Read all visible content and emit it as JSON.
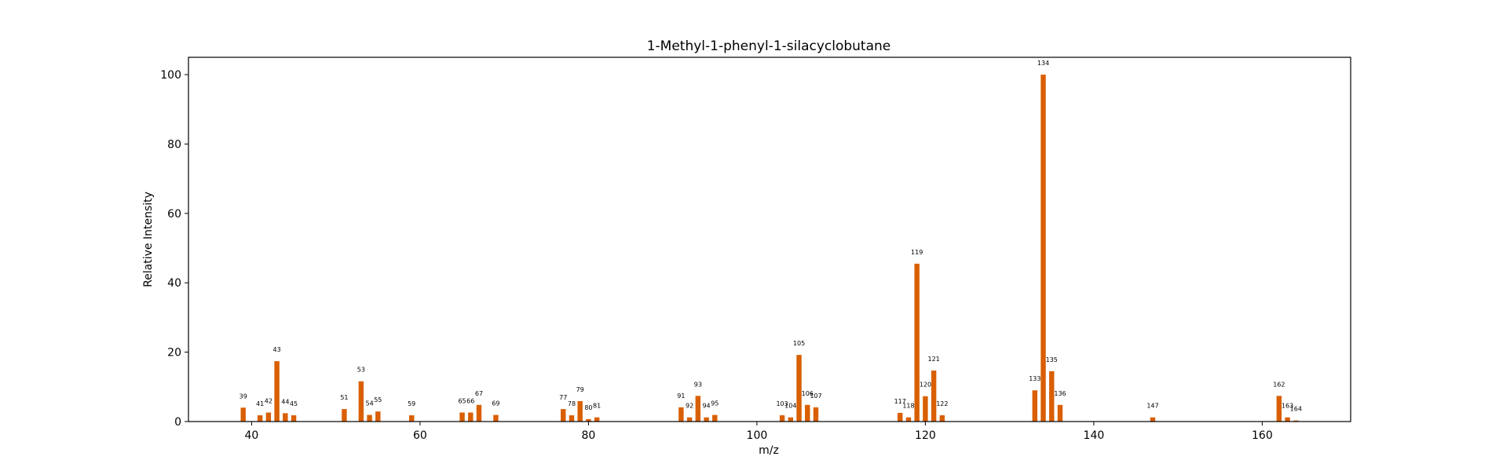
{
  "chart_data": {
    "type": "bar",
    "title": "1-Methyl-1-phenyl-1-silacyclobutane",
    "xlabel": "m/z",
    "ylabel": "Relative Intensity",
    "xlim": [
      32.5,
      170.5
    ],
    "ylim": [
      0,
      105
    ],
    "xticks": [
      40,
      60,
      80,
      100,
      120,
      140,
      160
    ],
    "yticks": [
      0,
      20,
      40,
      60,
      80,
      100
    ],
    "grid": false,
    "bar_color": "#d95f02",
    "bar_width": 0.6,
    "series": [
      {
        "x": [
          39,
          41,
          42,
          43,
          44,
          45,
          51,
          53,
          54,
          55,
          59,
          65,
          66,
          67,
          69,
          77,
          78,
          79,
          80,
          81,
          91,
          92,
          93,
          94,
          95,
          103,
          104,
          105,
          106,
          107,
          117,
          118,
          119,
          120,
          121,
          122,
          133,
          134,
          135,
          136,
          147,
          162,
          163,
          164
        ],
        "values": [
          4.0,
          1.8,
          2.6,
          17.4,
          2.4,
          1.8,
          3.6,
          11.6,
          1.9,
          2.9,
          1.8,
          2.6,
          2.6,
          4.8,
          1.9,
          3.6,
          1.8,
          5.9,
          0.7,
          1.2,
          4.1,
          1.2,
          7.4,
          1.2,
          1.9,
          1.8,
          1.2,
          19.2,
          4.8,
          4.1,
          2.5,
          1.2,
          45.5,
          7.3,
          14.7,
          1.8,
          9.0,
          100.0,
          14.5,
          4.8,
          1.2,
          7.4,
          1.2,
          0.3
        ],
        "labels": [
          "39",
          "41",
          "42",
          "43",
          "44",
          "45",
          "51",
          "53",
          "54",
          "55",
          "59",
          "65",
          "66",
          "67",
          "69",
          "77",
          "78",
          "79",
          "80",
          "81",
          "91",
          "92",
          "93",
          "94",
          "95",
          "103",
          "104",
          "105",
          "106",
          "107",
          "117",
          "118",
          "119",
          "120",
          "121",
          "122",
          "133",
          "134",
          "135",
          "136",
          "147",
          "162",
          "163",
          "164"
        ]
      }
    ]
  }
}
